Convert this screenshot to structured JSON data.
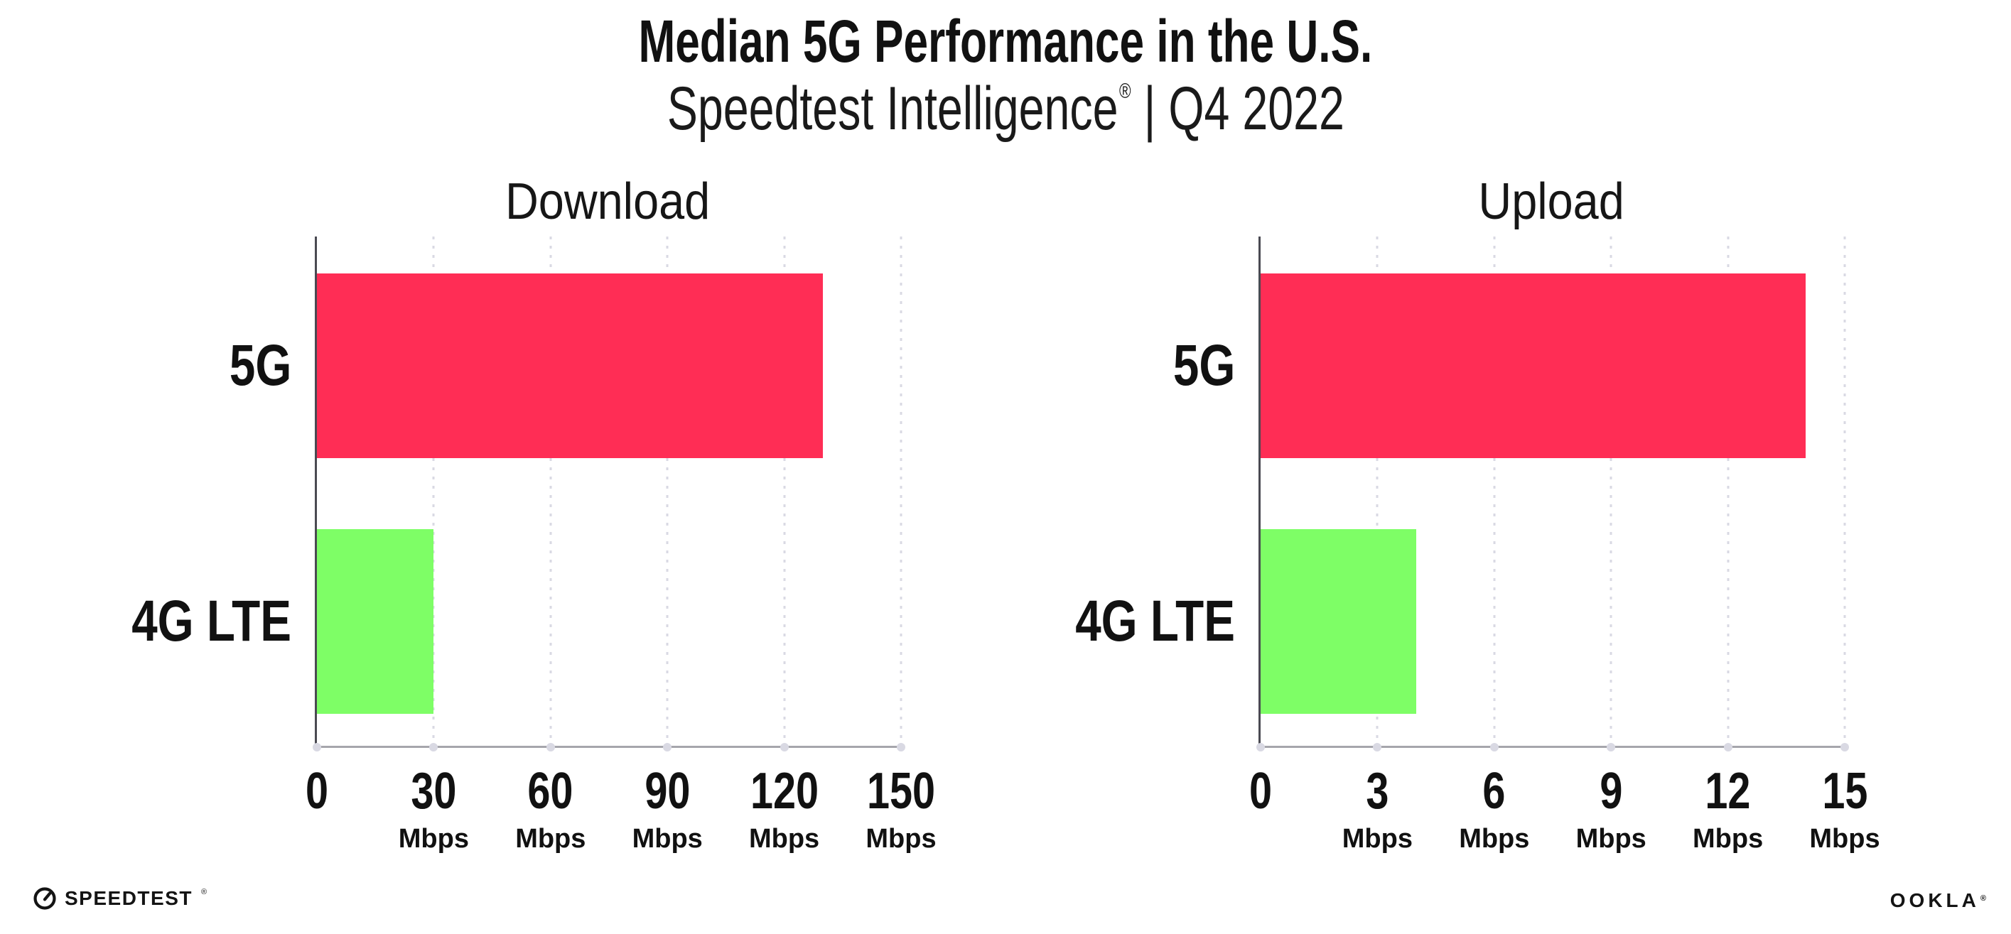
{
  "header": {
    "title": "Median 5G Performance in the U.S.",
    "subtitle_brand": "Speedtest Intelligence",
    "subtitle_registered": "®",
    "subtitle_separator": "|",
    "subtitle_period": "Q4 2022"
  },
  "chart_data": [
    {
      "type": "bar",
      "orientation": "horizontal",
      "title": "Download",
      "categories": [
        "5G",
        "4G LTE"
      ],
      "values": [
        130,
        30
      ],
      "unit": "Mbps",
      "tick_unit_label": "Mbps",
      "xlim": [
        0,
        150
      ],
      "xticks": [
        0,
        30,
        60,
        90,
        120,
        150
      ],
      "bar_colors": [
        "#FF2D55",
        "#7EFE66"
      ],
      "grid": "vertical-dotted",
      "legend": "none"
    },
    {
      "type": "bar",
      "orientation": "horizontal",
      "title": "Upload",
      "categories": [
        "5G",
        "4G LTE"
      ],
      "values": [
        14,
        4
      ],
      "unit": "Mbps",
      "tick_unit_label": "Mbps",
      "xlim": [
        0,
        15
      ],
      "xticks": [
        0,
        3,
        6,
        9,
        12,
        15
      ],
      "bar_colors": [
        "#FF2D55",
        "#7EFE66"
      ],
      "grid": "vertical-dotted",
      "legend": "none"
    }
  ],
  "footer": {
    "speedtest_wordmark": "SPEEDTEST",
    "speedtest_registered": "®",
    "ookla_wordmark": "OOKLA",
    "ookla_registered": "®"
  },
  "colors": {
    "bar_5g": "#FF2D55",
    "bar_4g_lte": "#7EFE66",
    "gridline": "#D9D9E3",
    "x_axis": "#A6A6AC",
    "y_axis": "#4A4A52",
    "text": "#111111",
    "background": "#FFFFFF"
  }
}
